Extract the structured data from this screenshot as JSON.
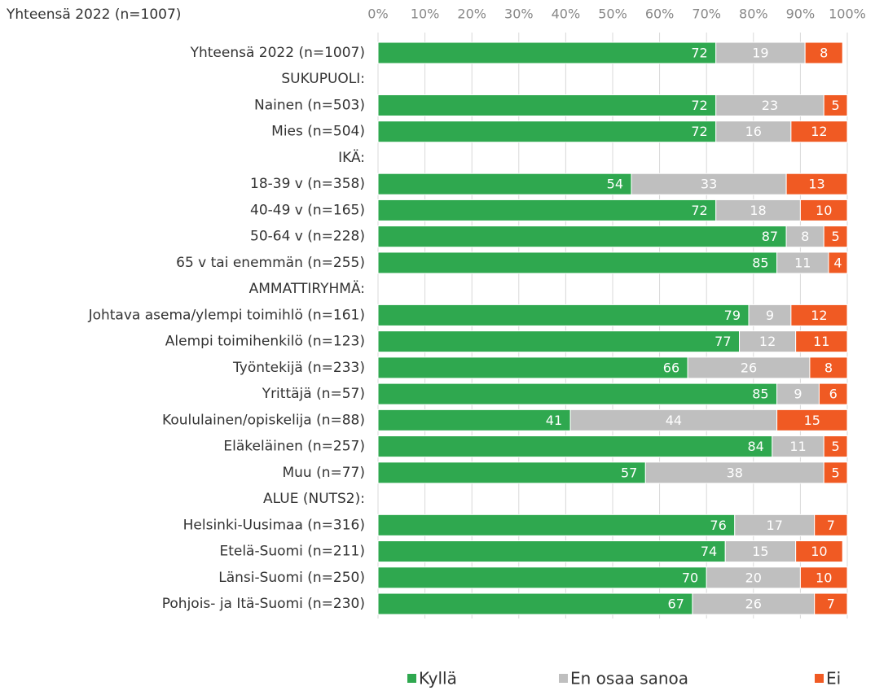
{
  "chart_data": {
    "type": "stacked_barh",
    "title": "Yhteensä 2022 (n=1007)",
    "categories": [
      "Yhteensä 2022 (n=1007)",
      "SUKUPUOLI:",
      "Nainen (n=503)",
      "Mies (n=504)",
      "IKÄ:",
      "18-39 v (n=358)",
      "40-49 v (n=165)",
      "50-64 v (n=228)",
      "65 v tai enemmän (n=255)",
      "AMMATTIRYHMÄ:",
      "Johtava asema/ylempi toimihlö (n=161)",
      "Alempi toimihenkilö (n=123)",
      "Työntekijä (n=233)",
      "Yrittäjä (n=57)",
      "Koululainen/opiskelija (n=88)",
      "Eläkeläinen (n=257)",
      "Muu (n=77)",
      "ALUE (NUTS2):",
      "Helsinki-Uusimaa (n=316)",
      "Etelä-Suomi (n=211)",
      "Länsi-Suomi (n=250)",
      "Pohjois- ja Itä-Suomi (n=230)"
    ],
    "series": [
      {
        "name": "Kyllä",
        "color": "#2fa84f",
        "values": [
          72,
          null,
          72,
          72,
          null,
          54,
          72,
          87,
          85,
          null,
          79,
          77,
          66,
          85,
          41,
          84,
          57,
          null,
          76,
          74,
          70,
          67
        ]
      },
      {
        "name": "En osaa sanoa",
        "color": "#bfbfbf",
        "values": [
          19,
          null,
          23,
          16,
          null,
          33,
          18,
          8,
          11,
          null,
          9,
          12,
          26,
          9,
          44,
          11,
          38,
          null,
          17,
          15,
          20,
          26
        ]
      },
      {
        "name": "Ei",
        "color": "#f05a23",
        "values": [
          8,
          null,
          5,
          12,
          null,
          13,
          10,
          5,
          4,
          null,
          12,
          11,
          8,
          6,
          15,
          5,
          5,
          null,
          7,
          10,
          10,
          7
        ]
      }
    ],
    "xlim": [
      0,
      100
    ],
    "xticks": [
      {
        "value": 0,
        "label": "0%"
      },
      {
        "value": 10,
        "label": "10%"
      },
      {
        "value": 20,
        "label": "20%"
      },
      {
        "value": 30,
        "label": "30%"
      },
      {
        "value": 40,
        "label": "40%"
      },
      {
        "value": 50,
        "label": "50%"
      },
      {
        "value": 60,
        "label": "60%"
      },
      {
        "value": 70,
        "label": "70%"
      },
      {
        "value": 80,
        "label": "80%"
      },
      {
        "value": 90,
        "label": "90%"
      },
      {
        "value": 100,
        "label": "100%"
      }
    ],
    "grid": true,
    "legend": "bottom"
  }
}
